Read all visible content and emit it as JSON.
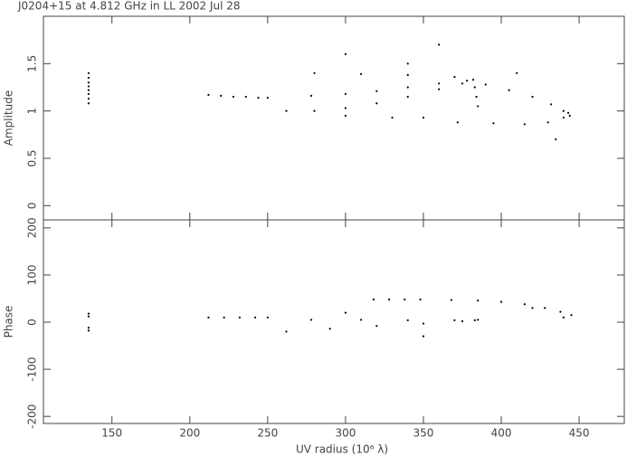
{
  "chart_data": [
    {
      "type": "scatter",
      "title": "J0204+15 at 4.812 GHz in LL  2002 Jul 28",
      "y_label": "Amplitude",
      "xlim": [
        106,
        479
      ],
      "ylim": [
        -0.15,
        2.0
      ],
      "yticks": [
        0,
        0.5,
        1,
        1.5
      ],
      "series": [
        {
          "color": "#000000",
          "x": [
            135,
            135,
            135,
            135,
            135,
            135,
            135,
            135,
            212,
            220,
            228,
            236,
            244,
            250,
            262,
            280,
            300,
            320,
            340,
            360,
            375,
            278,
            300,
            320,
            340,
            360,
            378,
            280,
            310,
            340,
            370,
            382,
            390,
            405,
            420,
            432,
            440,
            444,
            372,
            395,
            415,
            430,
            440,
            443,
            300,
            330,
            350,
            383,
            384,
            385,
            300,
            340,
            360,
            410,
            435
          ],
          "y": [
            1.08,
            1.13,
            1.18,
            1.22,
            1.26,
            1.3,
            1.35,
            1.4,
            1.17,
            1.16,
            1.15,
            1.15,
            1.14,
            1.14,
            1.0,
            1.0,
            1.03,
            1.08,
            1.15,
            1.23,
            1.29,
            1.16,
            1.18,
            1.21,
            1.25,
            1.29,
            1.32,
            1.4,
            1.39,
            1.38,
            1.36,
            1.33,
            1.28,
            1.22,
            1.15,
            1.07,
            1.0,
            0.95,
            0.88,
            0.87,
            0.86,
            0.88,
            0.93,
            0.98,
            0.95,
            0.93,
            0.93,
            1.25,
            1.15,
            1.05,
            1.6,
            1.5,
            1.7,
            1.4,
            0.7
          ]
        }
      ]
    },
    {
      "type": "scatter",
      "y_label": "Phase",
      "x_label": "UV radius  (10⁶ λ)",
      "xlim": [
        106,
        479
      ],
      "xticks": [
        150,
        200,
        250,
        300,
        350,
        400,
        450
      ],
      "ylim": [
        -215,
        217
      ],
      "yticks": [
        -200,
        -100,
        0,
        100,
        200
      ],
      "series": [
        {
          "color": "#000000",
          "x": [
            135,
            135,
            135,
            135,
            212,
            222,
            232,
            242,
            250,
            318,
            328,
            338,
            348,
            368,
            385,
            400,
            415,
            428,
            438,
            445,
            262,
            290,
            320,
            350,
            375,
            385,
            278,
            310,
            340,
            370,
            383,
            300,
            350,
            420,
            440
          ],
          "y": [
            18,
            12,
            -12,
            -18,
            10,
            10,
            10,
            10,
            10,
            48,
            48,
            48,
            48,
            47,
            46,
            43,
            38,
            30,
            22,
            15,
            -20,
            -14,
            -8,
            -3,
            2,
            5,
            5,
            5,
            4,
            4,
            4,
            20,
            -30,
            30,
            10
          ]
        }
      ]
    }
  ]
}
